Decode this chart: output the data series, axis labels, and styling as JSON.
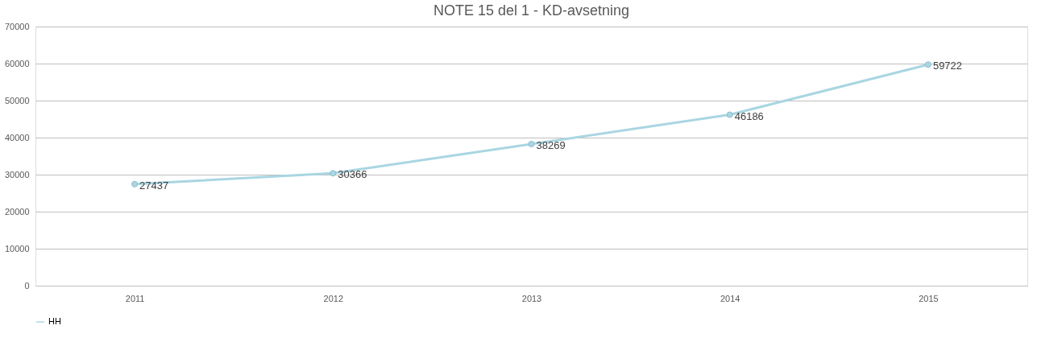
{
  "chart_data": {
    "type": "line",
    "title": "NOTE 15 del 1 - KD-avsetning",
    "categories": [
      "2011",
      "2012",
      "2013",
      "2014",
      "2015"
    ],
    "series": [
      {
        "name": "HH",
        "color": "#a9d6e2",
        "values": [
          27437,
          30366,
          38269,
          46186,
          59722
        ]
      }
    ],
    "ylim": [
      0,
      70000
    ],
    "yticks": [
      0,
      10000,
      20000,
      30000,
      40000,
      50000,
      60000,
      70000
    ],
    "grid": "y",
    "legend": "bottom",
    "marker": "circle",
    "line_style": "solid",
    "data_labels": true
  }
}
